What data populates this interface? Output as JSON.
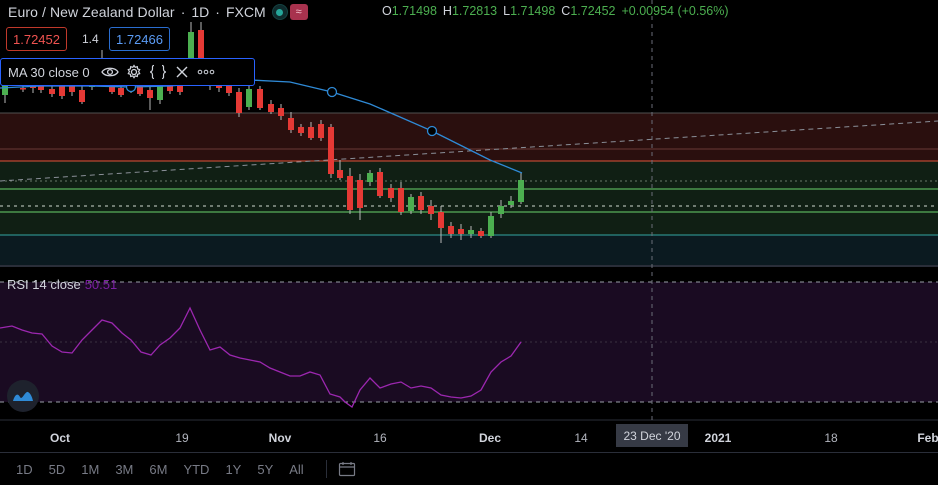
{
  "header": {
    "symbol": "Euro / New Zealand Dollar",
    "interval": "1D",
    "exchange": "FXCM",
    "separator": "·",
    "ohlc": {
      "open_key": "O",
      "open": "1.71498",
      "high_key": "H",
      "high": "1.72813",
      "low_key": "L",
      "low": "1.71498",
      "close_key": "C",
      "close": "1.72452",
      "change": "+0.00954 (+0.56%)"
    }
  },
  "trade": {
    "sell_price": "1.72452",
    "spread": "1.4",
    "buy_price": "1.72466"
  },
  "ma_indicator": {
    "label": "MA 30 close 0"
  },
  "rsi_indicator": {
    "label": "RSI 14 close",
    "value": "50.51"
  },
  "x_axis": {
    "labels": [
      "Oct",
      "19",
      "Nov",
      "16",
      "Dec",
      "14",
      "2021",
      "18",
      "Feb"
    ],
    "bold_labels": [
      "Oct",
      "Nov",
      "Dec",
      "2021",
      "Feb"
    ],
    "crosshair_date": "23 Dec '20"
  },
  "timeframes": [
    "1D",
    "5D",
    "1M",
    "3M",
    "6M",
    "YTD",
    "1Y",
    "5Y",
    "All"
  ],
  "colors": {
    "up": "#4caf50",
    "down": "#e53935",
    "ma": "#2f8ad6",
    "rsi": "#9c27b0"
  },
  "icons": [
    "visibility-eye-icon",
    "settings-gear-icon",
    "source-code-icon",
    "close-x-icon",
    "more-dots-icon",
    "tradingview-logo-icon",
    "calendar-range-icon"
  ]
}
